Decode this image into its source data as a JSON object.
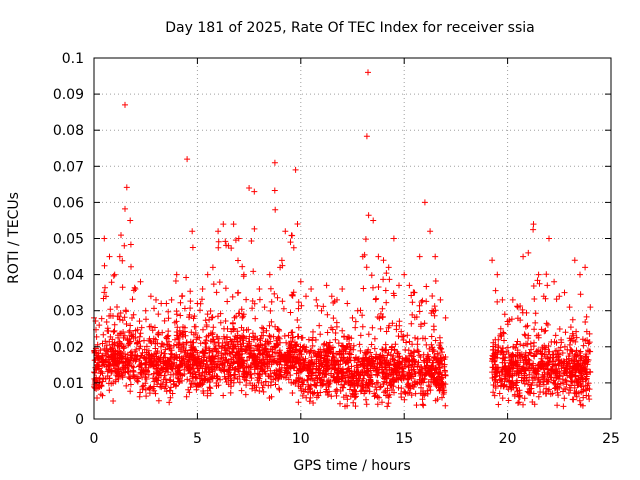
{
  "chart_data": {
    "type": "scatter",
    "title": "Day 181 of 2025, Rate Of TEC Index for receiver ssia",
    "xlabel": "GPS time / hours",
    "ylabel": "ROTI / TECUs",
    "xlim": [
      0,
      25
    ],
    "ylim": [
      0,
      0.1
    ],
    "x_ticks": [
      "0",
      "5",
      "10",
      "15",
      "20",
      "25"
    ],
    "y_ticks": [
      "0",
      "0.01",
      "0.02",
      "0.03",
      "0.04",
      "0.05",
      "0.06",
      "0.07",
      "0.08",
      "0.09",
      "0.1"
    ],
    "grid": true,
    "marker": "+",
    "colors": {
      "series": "#ff0000",
      "grid": "#a0a0a0",
      "axis": "#000000"
    },
    "series": [
      {
        "x": [
          0.0,
          0.25,
          0.5,
          0.75,
          1.0,
          1.25,
          1.5,
          1.75,
          2.0,
          2.25,
          2.5,
          2.75,
          3.0,
          3.25,
          3.5,
          3.75,
          4.0,
          4.25,
          4.5,
          4.75,
          5.0,
          5.25,
          5.5,
          5.75,
          6.0,
          6.25,
          6.5,
          6.75,
          7.0,
          7.25,
          7.5,
          7.75,
          8.0,
          8.25,
          8.5,
          8.75,
          9.0,
          9.25,
          9.5,
          9.75,
          10.0,
          10.25,
          10.5,
          10.75,
          11.0,
          11.25,
          11.5,
          11.75,
          12.0,
          12.25,
          12.5,
          12.75,
          13.0,
          13.25,
          13.5,
          13.75,
          14.0,
          14.25,
          14.5,
          14.75,
          15.0,
          15.25,
          15.5,
          15.75,
          16.0,
          16.25,
          16.5,
          16.75,
          17.0,
          19.25,
          19.5,
          19.75,
          20.0,
          20.25,
          20.5,
          20.75,
          21.0,
          21.25,
          21.5,
          21.75,
          22.0,
          22.25,
          22.5,
          22.75,
          23.0,
          23.25,
          23.5,
          23.75,
          24.0
        ],
        "y_median": [
          0.013,
          0.014,
          0.015,
          0.015,
          0.016,
          0.016,
          0.018,
          0.017,
          0.016,
          0.015,
          0.015,
          0.015,
          0.014,
          0.014,
          0.014,
          0.014,
          0.015,
          0.016,
          0.016,
          0.015,
          0.014,
          0.014,
          0.015,
          0.016,
          0.016,
          0.017,
          0.016,
          0.017,
          0.017,
          0.016,
          0.017,
          0.016,
          0.016,
          0.015,
          0.016,
          0.016,
          0.016,
          0.016,
          0.017,
          0.016,
          0.015,
          0.014,
          0.013,
          0.014,
          0.015,
          0.014,
          0.014,
          0.013,
          0.013,
          0.013,
          0.012,
          0.013,
          0.013,
          0.014,
          0.014,
          0.013,
          0.013,
          0.012,
          0.013,
          0.013,
          0.012,
          0.012,
          0.013,
          0.013,
          0.014,
          0.014,
          0.014,
          0.013,
          0.012,
          0.013,
          0.013,
          0.013,
          0.013,
          0.014,
          0.013,
          0.014,
          0.014,
          0.014,
          0.014,
          0.014,
          0.013,
          0.013,
          0.013,
          0.013,
          0.014,
          0.013,
          0.013,
          0.013,
          0.013
        ],
        "y_peak": [
          0.028,
          0.026,
          0.05,
          0.045,
          0.04,
          0.045,
          0.087,
          0.055,
          0.036,
          0.038,
          0.03,
          0.034,
          0.033,
          0.032,
          0.032,
          0.033,
          0.04,
          0.034,
          0.072,
          0.052,
          0.032,
          0.036,
          0.04,
          0.042,
          0.052,
          0.054,
          0.048,
          0.054,
          0.05,
          0.04,
          0.064,
          0.063,
          0.036,
          0.031,
          0.04,
          0.071,
          0.042,
          0.052,
          0.049,
          0.069,
          0.038,
          0.034,
          0.036,
          0.033,
          0.03,
          0.037,
          0.034,
          0.033,
          0.036,
          0.032,
          0.028,
          0.03,
          0.045,
          0.096,
          0.055,
          0.045,
          0.044,
          0.042,
          0.05,
          0.037,
          0.04,
          0.037,
          0.035,
          0.045,
          0.06,
          0.052,
          0.045,
          0.033,
          0.028,
          0.044,
          0.04,
          0.033,
          0.027,
          0.033,
          0.031,
          0.045,
          0.046,
          0.054,
          0.04,
          0.034,
          0.05,
          0.038,
          0.034,
          0.035,
          0.031,
          0.044,
          0.04,
          0.042,
          0.031
        ]
      }
    ]
  }
}
